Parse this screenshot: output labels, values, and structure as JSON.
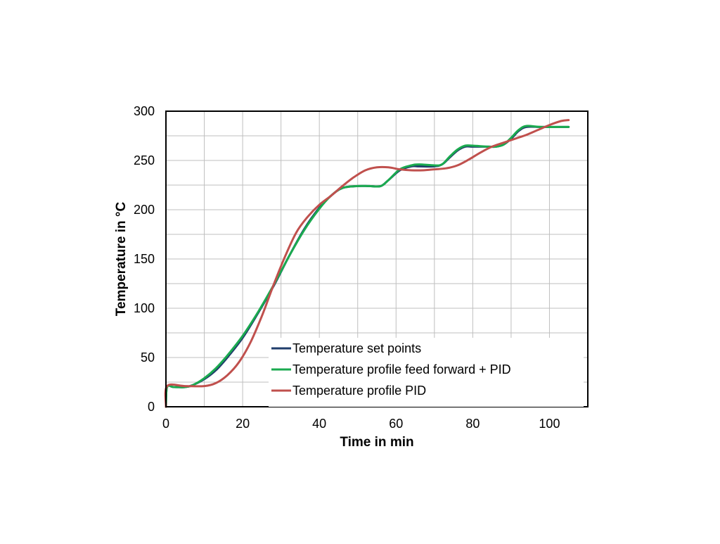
{
  "chart_data": {
    "type": "line",
    "title": "",
    "xlabel": "Time in min",
    "ylabel": "Temperature in °C",
    "xlim": [
      0,
      110
    ],
    "ylim": [
      0,
      300
    ],
    "x_ticks": [
      0,
      20,
      40,
      60,
      80,
      100
    ],
    "y_ticks": [
      0,
      50,
      100,
      150,
      200,
      250,
      300
    ],
    "grid": true,
    "legend_position": "lower-right",
    "series": [
      {
        "name": "Temperature set points",
        "color": "#1f3d6b",
        "points": [
          [
            0,
            0
          ],
          [
            0.3,
            20
          ],
          [
            2,
            20
          ],
          [
            5,
            20
          ],
          [
            7,
            22
          ],
          [
            10,
            28
          ],
          [
            13,
            37
          ],
          [
            16,
            50
          ],
          [
            20,
            70
          ],
          [
            24,
            95
          ],
          [
            28,
            122
          ],
          [
            32,
            152
          ],
          [
            36,
            180
          ],
          [
            40,
            202
          ],
          [
            43,
            214
          ],
          [
            46,
            222
          ],
          [
            50,
            224
          ],
          [
            53,
            224
          ],
          [
            56,
            224
          ],
          [
            58,
            230
          ],
          [
            61,
            240
          ],
          [
            64,
            244
          ],
          [
            66,
            244
          ],
          [
            70,
            244
          ],
          [
            72,
            246
          ],
          [
            74,
            253
          ],
          [
            76,
            260
          ],
          [
            78,
            264
          ],
          [
            80,
            264
          ],
          [
            84,
            264
          ],
          [
            86,
            264
          ],
          [
            88,
            266
          ],
          [
            90,
            272
          ],
          [
            92,
            280
          ],
          [
            94,
            284
          ],
          [
            98,
            284
          ],
          [
            105,
            284
          ]
        ]
      },
      {
        "name": "Temperature profile feed forward + PID",
        "color": "#1aaa4f",
        "points": [
          [
            0,
            0
          ],
          [
            0.3,
            20
          ],
          [
            2,
            20
          ],
          [
            5,
            20
          ],
          [
            7,
            22
          ],
          [
            10,
            29
          ],
          [
            13,
            39
          ],
          [
            16,
            52
          ],
          [
            20,
            72
          ],
          [
            24,
            96
          ],
          [
            28,
            123
          ],
          [
            32,
            152
          ],
          [
            36,
            179
          ],
          [
            40,
            201
          ],
          [
            43,
            214
          ],
          [
            46,
            222
          ],
          [
            50,
            224
          ],
          [
            53,
            224
          ],
          [
            56,
            224
          ],
          [
            58,
            230
          ],
          [
            61,
            241
          ],
          [
            64,
            245
          ],
          [
            66,
            246
          ],
          [
            70,
            245
          ],
          [
            72,
            246
          ],
          [
            74,
            254
          ],
          [
            76,
            261
          ],
          [
            78,
            265
          ],
          [
            80,
            265
          ],
          [
            84,
            264
          ],
          [
            86,
            264
          ],
          [
            88,
            266
          ],
          [
            90,
            273
          ],
          [
            92,
            281
          ],
          [
            94,
            285
          ],
          [
            98,
            284
          ],
          [
            105,
            284
          ]
        ]
      },
      {
        "name": "Temperature profile PID",
        "color": "#c0504d",
        "points": [
          [
            0,
            0
          ],
          [
            0.3,
            21
          ],
          [
            5,
            21
          ],
          [
            10,
            21
          ],
          [
            13,
            24
          ],
          [
            16,
            32
          ],
          [
            19,
            45
          ],
          [
            22,
            65
          ],
          [
            25,
            92
          ],
          [
            28,
            123
          ],
          [
            31,
            152
          ],
          [
            34,
            177
          ],
          [
            37,
            193
          ],
          [
            40,
            205
          ],
          [
            43,
            214
          ],
          [
            46,
            224
          ],
          [
            49,
            233
          ],
          [
            52,
            240
          ],
          [
            55,
            243
          ],
          [
            58,
            243
          ],
          [
            61,
            241
          ],
          [
            64,
            240
          ],
          [
            67,
            240
          ],
          [
            70,
            241
          ],
          [
            73,
            242
          ],
          [
            76,
            245
          ],
          [
            79,
            251
          ],
          [
            82,
            258
          ],
          [
            85,
            264
          ],
          [
            88,
            268
          ],
          [
            91,
            272
          ],
          [
            94,
            276
          ],
          [
            97,
            281
          ],
          [
            100,
            286
          ],
          [
            103,
            290
          ],
          [
            105,
            291
          ]
        ]
      }
    ]
  }
}
